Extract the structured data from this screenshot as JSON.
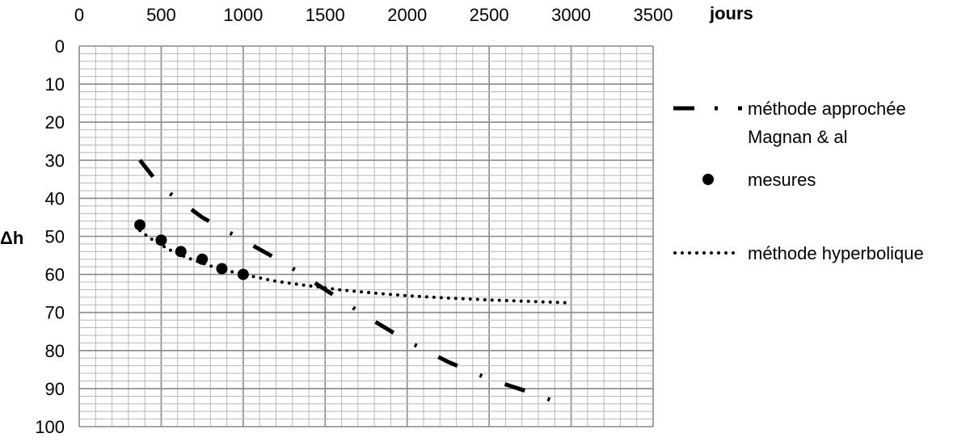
{
  "chart_data": {
    "type": "line",
    "xlabel": "jours",
    "ylabel": "Δh",
    "xlim": [
      0,
      3500
    ],
    "ylim": [
      0,
      100
    ],
    "y_inverted": true,
    "x_axis_position": "top",
    "x_ticks": [
      "0",
      "500",
      "1000",
      "1500",
      "2000",
      "2500",
      "3000",
      "3500"
    ],
    "y_ticks": [
      "0",
      "10",
      "20",
      "30",
      "40",
      "50",
      "60",
      "70",
      "80",
      "90",
      "100"
    ],
    "grid": true,
    "legend_position": "right",
    "series": [
      {
        "name": "méthode approchée Magnan & al",
        "style": "dash-dot",
        "color": "#000000",
        "x": [
          370,
          500,
          750,
          1000,
          1250,
          1500,
          1750,
          2000,
          2250,
          2500,
          2750,
          2970
        ],
        "y": [
          30,
          37,
          45,
          51,
          57,
          64,
          71,
          77.5,
          83,
          87.5,
          91,
          94.5
        ]
      },
      {
        "name": "mesures",
        "style": "markers",
        "color": "#000000",
        "x": [
          370,
          500,
          620,
          750,
          870,
          1000
        ],
        "y": [
          47,
          51,
          54,
          56,
          58.5,
          60
        ]
      },
      {
        "name": "méthode hyperbolique",
        "style": "dotted",
        "color": "#000000",
        "x": [
          370,
          450,
          550,
          650,
          750,
          850,
          1000,
          1200,
          1400,
          1600,
          1800,
          2000,
          2250,
          2500,
          2750,
          3000
        ],
        "y": [
          48.5,
          51,
          53.5,
          55.5,
          57,
          58.5,
          60,
          61.8,
          63,
          64.1,
          64.9,
          65.6,
          66.2,
          66.7,
          67.1,
          67.5
        ]
      }
    ]
  }
}
